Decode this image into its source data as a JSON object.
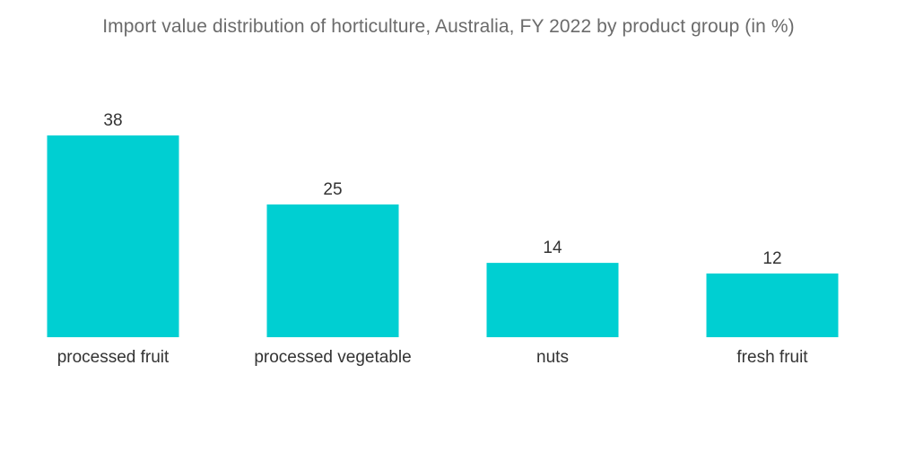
{
  "chart_data": {
    "type": "bar",
    "title": "Import value distribution of horticulture, Australia, FY 2022 by product group (in %)",
    "categories": [
      "processed fruit",
      "processed vegetable",
      "nuts",
      "fresh fruit"
    ],
    "values": [
      38,
      25,
      14,
      12
    ],
    "xlabel": "",
    "ylabel": "",
    "ylim": [
      0,
      40
    ],
    "grid": false,
    "legend": "none",
    "bar_color": "#00cfd2"
  }
}
